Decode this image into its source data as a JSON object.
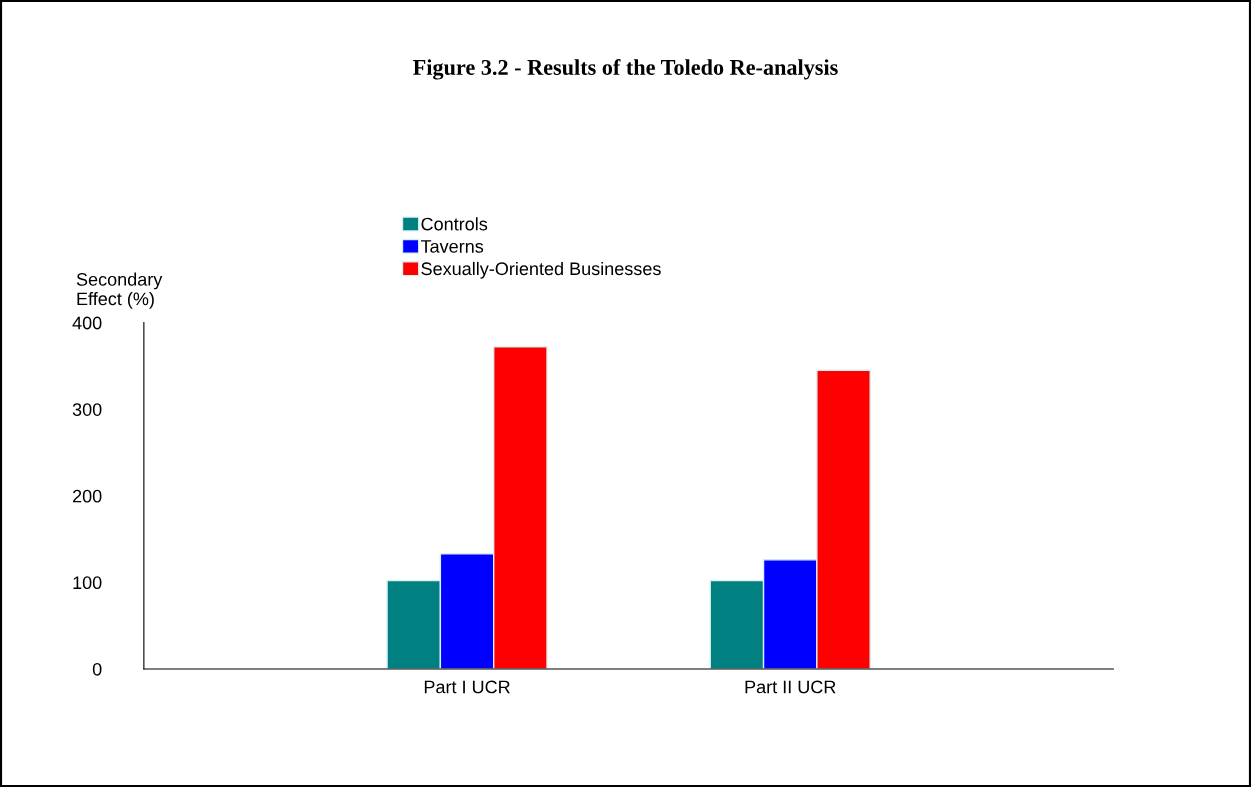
{
  "chart_data": {
    "type": "bar",
    "title": "Figure 3.2 - Results of the Toledo Re-analysis",
    "ylabel": "Secondary\nEffect (%)",
    "categories": [
      "Part I UCR",
      "Part II UCR"
    ],
    "series": [
      {
        "name": "Controls",
        "color": "#008080",
        "values": [
          102,
          102
        ]
      },
      {
        "name": "Taverns",
        "color": "#0000ff",
        "values": [
          133,
          126
        ]
      },
      {
        "name": "Sexually-Oriented Businesses",
        "color": "#ff0000",
        "values": [
          372,
          345
        ]
      }
    ],
    "ylim": [
      0,
      400
    ],
    "yticks": [
      0,
      100,
      200,
      300,
      400
    ],
    "grid": false,
    "legend": "top"
  }
}
